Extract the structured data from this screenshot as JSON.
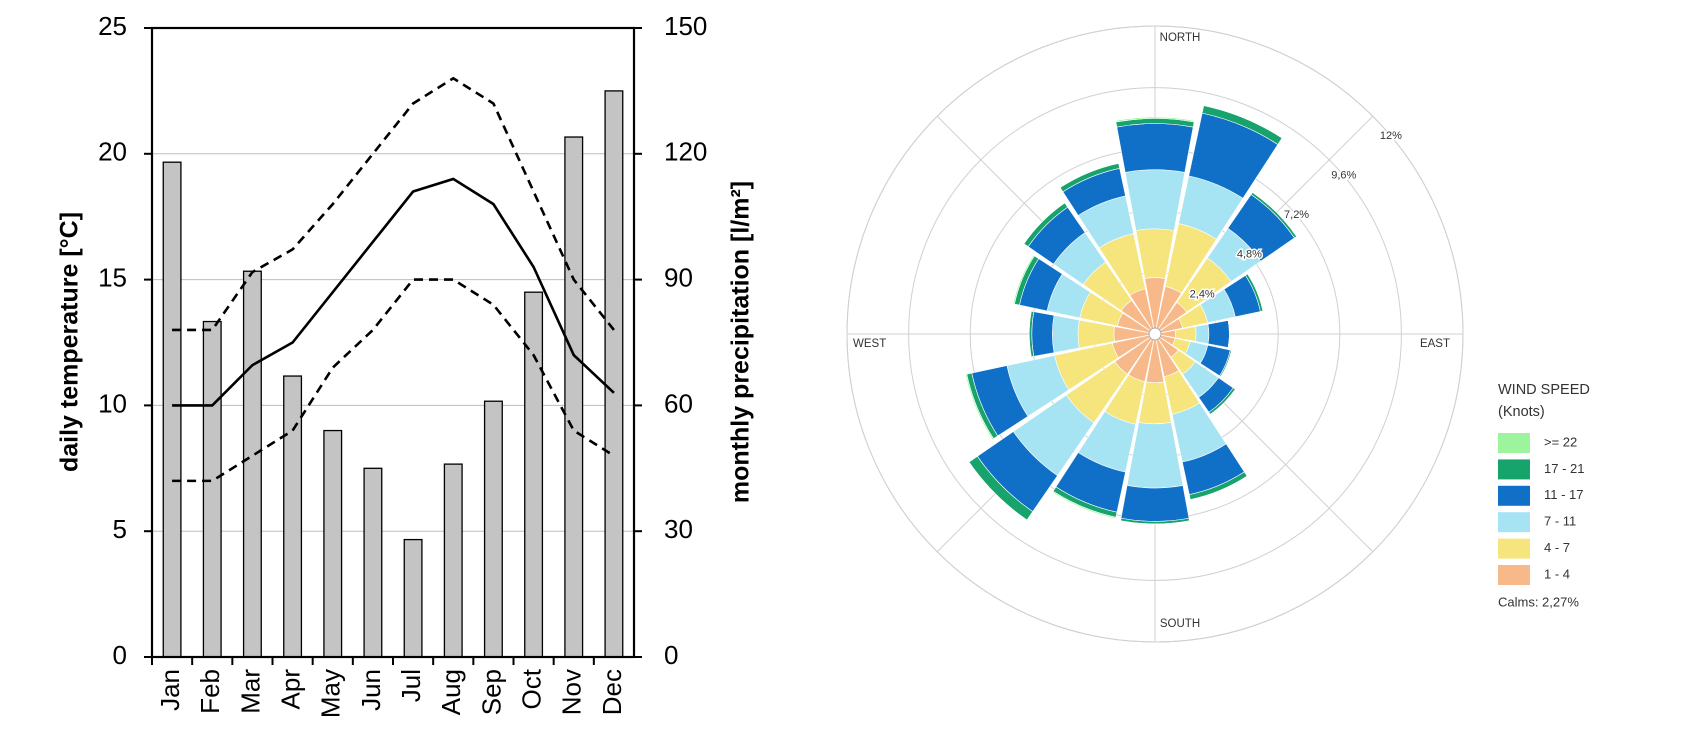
{
  "chart_data": [
    {
      "type": "bar",
      "y_label": "daily temperature [°C]",
      "y2_label": "monthly precipitation [l/m²]",
      "categories": [
        "Jan",
        "Feb",
        "Mar",
        "Apr",
        "May",
        "Jun",
        "Jul",
        "Aug",
        "Sep",
        "Oct",
        "Nov",
        "Dec"
      ],
      "ylim": [
        0,
        25
      ],
      "yticks": [
        0,
        5,
        10,
        15,
        20,
        25
      ],
      "y2lim": [
        0,
        150
      ],
      "y2ticks": [
        0,
        30,
        60,
        90,
        120,
        150
      ],
      "grid": true,
      "series": [
        {
          "type": "bar",
          "axis": "y2",
          "color": "#c4c4c4",
          "values": [
            118,
            80,
            92,
            67,
            54,
            45,
            28,
            46,
            61,
            87,
            124,
            135
          ]
        },
        {
          "type": "line",
          "color": "#000000",
          "dashed": false,
          "values": [
            10,
            10,
            11.6,
            12.5,
            14.5,
            16.5,
            18.5,
            19,
            18,
            15.5,
            12,
            10.5
          ]
        },
        {
          "type": "line",
          "color": "#000000",
          "dashed": true,
          "values": [
            13,
            13,
            15.3,
            16.2,
            18,
            20,
            22,
            23,
            22,
            18.5,
            15,
            13
          ]
        },
        {
          "type": "line",
          "color": "#000000",
          "dashed": true,
          "values": [
            7,
            7,
            8,
            9,
            11.5,
            13,
            15,
            15,
            14,
            12,
            9,
            8
          ]
        }
      ]
    },
    {
      "type": "windrose",
      "directions": [
        "NORTH",
        null,
        null,
        null,
        "EAST",
        null,
        null,
        null,
        "SOUTH",
        null,
        null,
        null,
        "WEST",
        null,
        null,
        null
      ],
      "rlim": [
        0,
        12
      ],
      "rticks": [
        {
          "value": 2.4,
          "label": "2,4%"
        },
        {
          "value": 4.8,
          "label": "4,8%"
        },
        {
          "value": 7.2,
          "label": "7,2%"
        },
        {
          "value": 9.6,
          "label": "9,6%"
        },
        {
          "value": 12,
          "label": "12%"
        }
      ],
      "legend_title": "WIND SPEED",
      "legend_subtitle": "(Knots)",
      "note": "Calms: 2,27%",
      "series": [
        {
          "name": ">= 22",
          "color": "#9cf59c",
          "values": [
            0.05,
            0,
            0,
            0,
            0,
            0,
            0,
            0,
            0,
            0.05,
            0,
            0.05,
            0,
            0.05,
            0,
            0
          ]
        },
        {
          "name": "17 - 21",
          "color": "#17a46c",
          "values": [
            0.2,
            0.3,
            0.1,
            0.1,
            0,
            0.05,
            0.1,
            0.2,
            0.1,
            0.2,
            0.4,
            0.2,
            0.1,
            0.2,
            0.2,
            0.2
          ]
        },
        {
          "name": "11 - 17",
          "color": "#1070c8",
          "values": [
            1.8,
            2.5,
            1.6,
            1.0,
            0.8,
            0.9,
            0.7,
            1.3,
            1.3,
            1.6,
            1.7,
            1.4,
            0.8,
            1.1,
            1.2,
            1.1
          ]
        },
        {
          "name": "7 - 11",
          "color": "#a6e3f3",
          "values": [
            2.3,
            1.9,
            1.4,
            1.1,
            0.5,
            0.7,
            1.1,
            1.9,
            2.5,
            1.9,
            2.5,
            1.9,
            1.0,
            1.3,
            1.4,
            1.5
          ]
        },
        {
          "name": "4 - 7",
          "color": "#f6e47c",
          "values": [
            1.9,
            2.5,
            2.1,
            1.0,
            0.8,
            0.6,
            0.8,
            1.5,
            1.6,
            1.7,
            2.3,
            2.3,
            1.4,
            1.5,
            1.8,
            2.2
          ]
        },
        {
          "name": "1 - 4",
          "color": "#f8b98a",
          "values": [
            2.2,
            1.9,
            1.5,
            1.1,
            0.8,
            0.8,
            1.1,
            1.7,
            1.9,
            1.9,
            1.9,
            1.7,
            1.6,
            1.5,
            1.6,
            1.8
          ]
        }
      ]
    }
  ]
}
